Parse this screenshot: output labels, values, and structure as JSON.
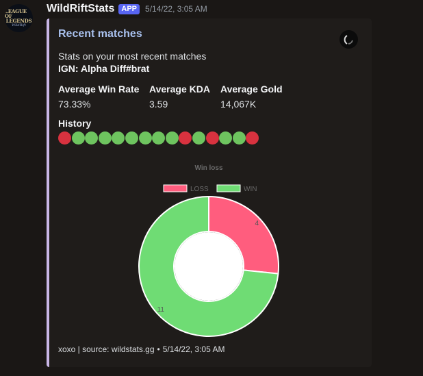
{
  "message": {
    "avatar_text": [
      "LEAGUE OF",
      "LEGENDS",
      "WildRift"
    ],
    "username": "WildRiftStats",
    "badge": "APP",
    "timestamp": "5/14/22, 3:05 AM"
  },
  "embed": {
    "accent_color": "#c9b6e6",
    "title": "Recent matches",
    "description": "Stats on your most recent matches",
    "ign": "IGN: Alpha Diff#brat",
    "fields": [
      {
        "name": "Average Win Rate",
        "value": "73.33%"
      },
      {
        "name": "Average KDA",
        "value": "3.59"
      },
      {
        "name": "Average Gold",
        "value": "14,067K"
      }
    ],
    "history_title": "History",
    "history": [
      "L",
      "W",
      "W",
      "W",
      "W",
      "W",
      "W",
      "W",
      "W",
      "L",
      "W",
      "L",
      "W",
      "W",
      "L"
    ],
    "footer_text": "xoxo | source: wildstats.gg",
    "footer_separator": "•",
    "footer_time": "5/14/22, 3:05 AM"
  },
  "colors": {
    "win": "#6ec45f",
    "loss": "#d8323f",
    "chart_loss": "#ff5d7e",
    "chart_win": "#6fdc74"
  },
  "chart_data": {
    "type": "pie",
    "title": "Win loss",
    "categories": [
      "LOSS",
      "WIN"
    ],
    "values": [
      4,
      11
    ],
    "donut": true,
    "legend": "top"
  }
}
